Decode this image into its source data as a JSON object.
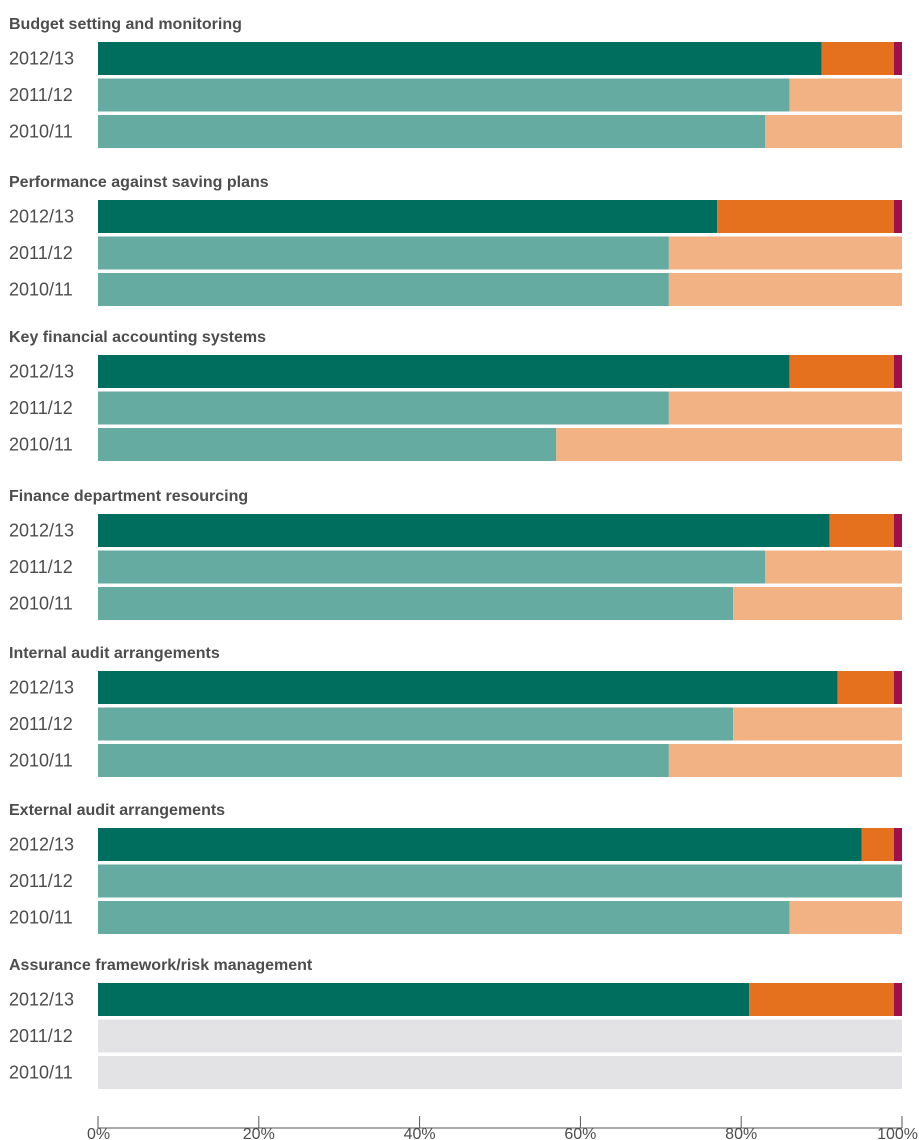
{
  "chart_data": {
    "type": "bar",
    "orientation": "horizontal",
    "stacked": true,
    "xlim": [
      0,
      100
    ],
    "x_ticks": [
      "0%",
      "20%",
      "40%",
      "60%",
      "80%",
      "100%"
    ],
    "colors": {
      "current_segments": [
        "#006e5f",
        "#e5711e",
        "#a0104a"
      ],
      "previous_segments": [
        "#66aba2",
        "#f3b283"
      ],
      "no_data": "#e3e3e5"
    },
    "groups": [
      {
        "title": "Budget setting and monitoring",
        "rows": [
          {
            "year": "2012/13",
            "segments": [
              90,
              9,
              1
            ]
          },
          {
            "year": "2011/12",
            "segments": [
              86,
              14
            ]
          },
          {
            "year": "2010/11",
            "segments": [
              83,
              17
            ]
          }
        ]
      },
      {
        "title": "Performance against saving plans",
        "rows": [
          {
            "year": "2012/13",
            "segments": [
              77,
              22,
              1
            ]
          },
          {
            "year": "2011/12",
            "segments": [
              71,
              29
            ]
          },
          {
            "year": "2010/11",
            "segments": [
              71,
              29
            ]
          }
        ]
      },
      {
        "title": "Key financial accounting systems",
        "rows": [
          {
            "year": "2012/13",
            "segments": [
              86,
              13,
              1
            ]
          },
          {
            "year": "2011/12",
            "segments": [
              71,
              29
            ]
          },
          {
            "year": "2010/11",
            "segments": [
              57,
              43
            ]
          }
        ]
      },
      {
        "title": "Finance department resourcing",
        "rows": [
          {
            "year": "2012/13",
            "segments": [
              91,
              8,
              1
            ]
          },
          {
            "year": "2011/12",
            "segments": [
              83,
              17
            ]
          },
          {
            "year": "2010/11",
            "segments": [
              79,
              21
            ]
          }
        ]
      },
      {
        "title": "Internal audit arrangements",
        "rows": [
          {
            "year": "2012/13",
            "segments": [
              92,
              7,
              1
            ]
          },
          {
            "year": "2011/12",
            "segments": [
              79,
              21
            ]
          },
          {
            "year": "2010/11",
            "segments": [
              71,
              29
            ]
          }
        ]
      },
      {
        "title": "External audit arrangements",
        "rows": [
          {
            "year": "2012/13",
            "segments": [
              95,
              4,
              1
            ]
          },
          {
            "year": "2011/12",
            "segments": [
              100,
              0
            ]
          },
          {
            "year": "2010/11",
            "segments": [
              86,
              14
            ]
          }
        ]
      },
      {
        "title": "Assurance framework/risk management",
        "rows": [
          {
            "year": "2012/13",
            "segments": [
              81,
              18,
              1
            ]
          },
          {
            "year": "2011/12",
            "segments": null
          },
          {
            "year": "2010/11",
            "segments": null
          }
        ]
      }
    ]
  }
}
